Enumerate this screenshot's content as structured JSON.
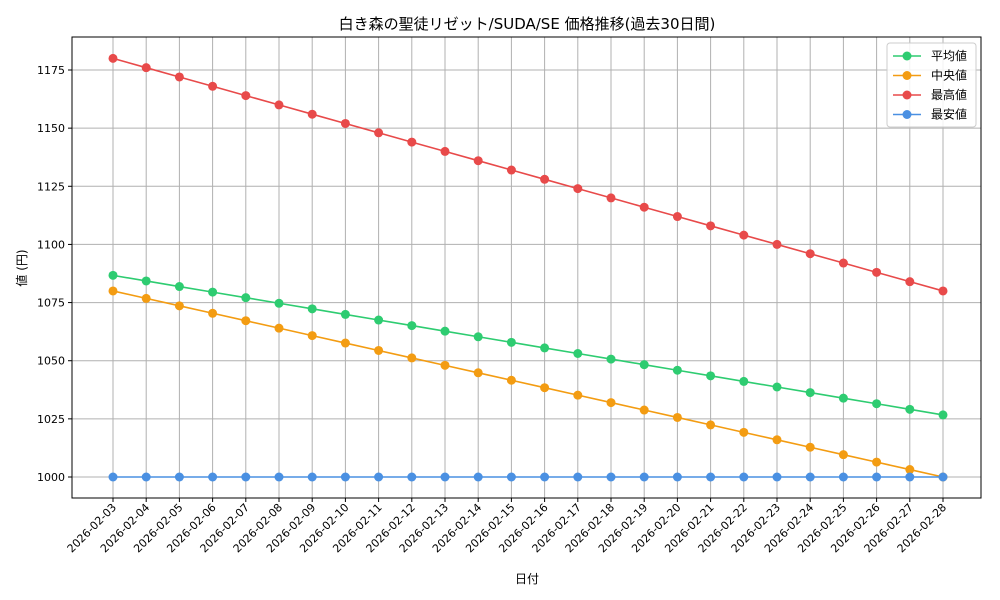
{
  "chart_data": {
    "type": "line",
    "title": "白き森の聖徒リゼット/SUDA/SE 価格推移(過去30日間)",
    "xlabel": "日付",
    "ylabel": "値 (円)",
    "ylim": [
      992,
      1188
    ],
    "yticks": [
      1000,
      1025,
      1050,
      1075,
      1100,
      1125,
      1150,
      1175
    ],
    "grid": true,
    "legend_position": "upper right",
    "x": [
      "2026-02-03",
      "2026-02-04",
      "2026-02-05",
      "2026-02-06",
      "2026-02-07",
      "2026-02-08",
      "2026-02-09",
      "2026-02-10",
      "2026-02-11",
      "2026-02-12",
      "2026-02-13",
      "2026-02-14",
      "2026-02-15",
      "2026-02-16",
      "2026-02-17",
      "2026-02-18",
      "2026-02-19",
      "2026-02-20",
      "2026-02-21",
      "2026-02-22",
      "2026-02-23",
      "2026-02-24",
      "2026-02-25",
      "2026-02-26",
      "2026-02-27",
      "2026-02-28"
    ],
    "series": [
      {
        "name": "平均値",
        "color": "#2ecc71",
        "values": [
          1086.7,
          1084.3,
          1081.9,
          1079.5,
          1077.1,
          1074.7,
          1072.3,
          1069.9,
          1067.5,
          1065.1,
          1062.7,
          1060.3,
          1057.9,
          1055.5,
          1053.1,
          1050.7,
          1048.3,
          1045.9,
          1043.5,
          1041.1,
          1038.7,
          1036.3,
          1033.9,
          1031.5,
          1029.1,
          1026.7
        ]
      },
      {
        "name": "中央値",
        "color": "#f39c12",
        "values": [
          1080.0,
          1076.8,
          1073.6,
          1070.4,
          1067.2,
          1064.0,
          1060.8,
          1057.6,
          1054.4,
          1051.2,
          1048.0,
          1044.8,
          1041.6,
          1038.4,
          1035.2,
          1032.0,
          1028.8,
          1025.6,
          1022.4,
          1019.2,
          1016.0,
          1012.8,
          1009.6,
          1006.4,
          1003.2,
          1000.0
        ]
      },
      {
        "name": "最高値",
        "color": "#e84a4a",
        "values": [
          1180,
          1176,
          1172,
          1168,
          1164,
          1160,
          1156,
          1152,
          1148,
          1144,
          1140,
          1136,
          1132,
          1128,
          1124,
          1120,
          1116,
          1112,
          1108,
          1104,
          1100,
          1096,
          1092,
          1088,
          1084,
          1080
        ]
      },
      {
        "name": "最安値",
        "color": "#4a90e2",
        "values": [
          1000,
          1000,
          1000,
          1000,
          1000,
          1000,
          1000,
          1000,
          1000,
          1000,
          1000,
          1000,
          1000,
          1000,
          1000,
          1000,
          1000,
          1000,
          1000,
          1000,
          1000,
          1000,
          1000,
          1000,
          1000,
          1000
        ]
      }
    ]
  }
}
